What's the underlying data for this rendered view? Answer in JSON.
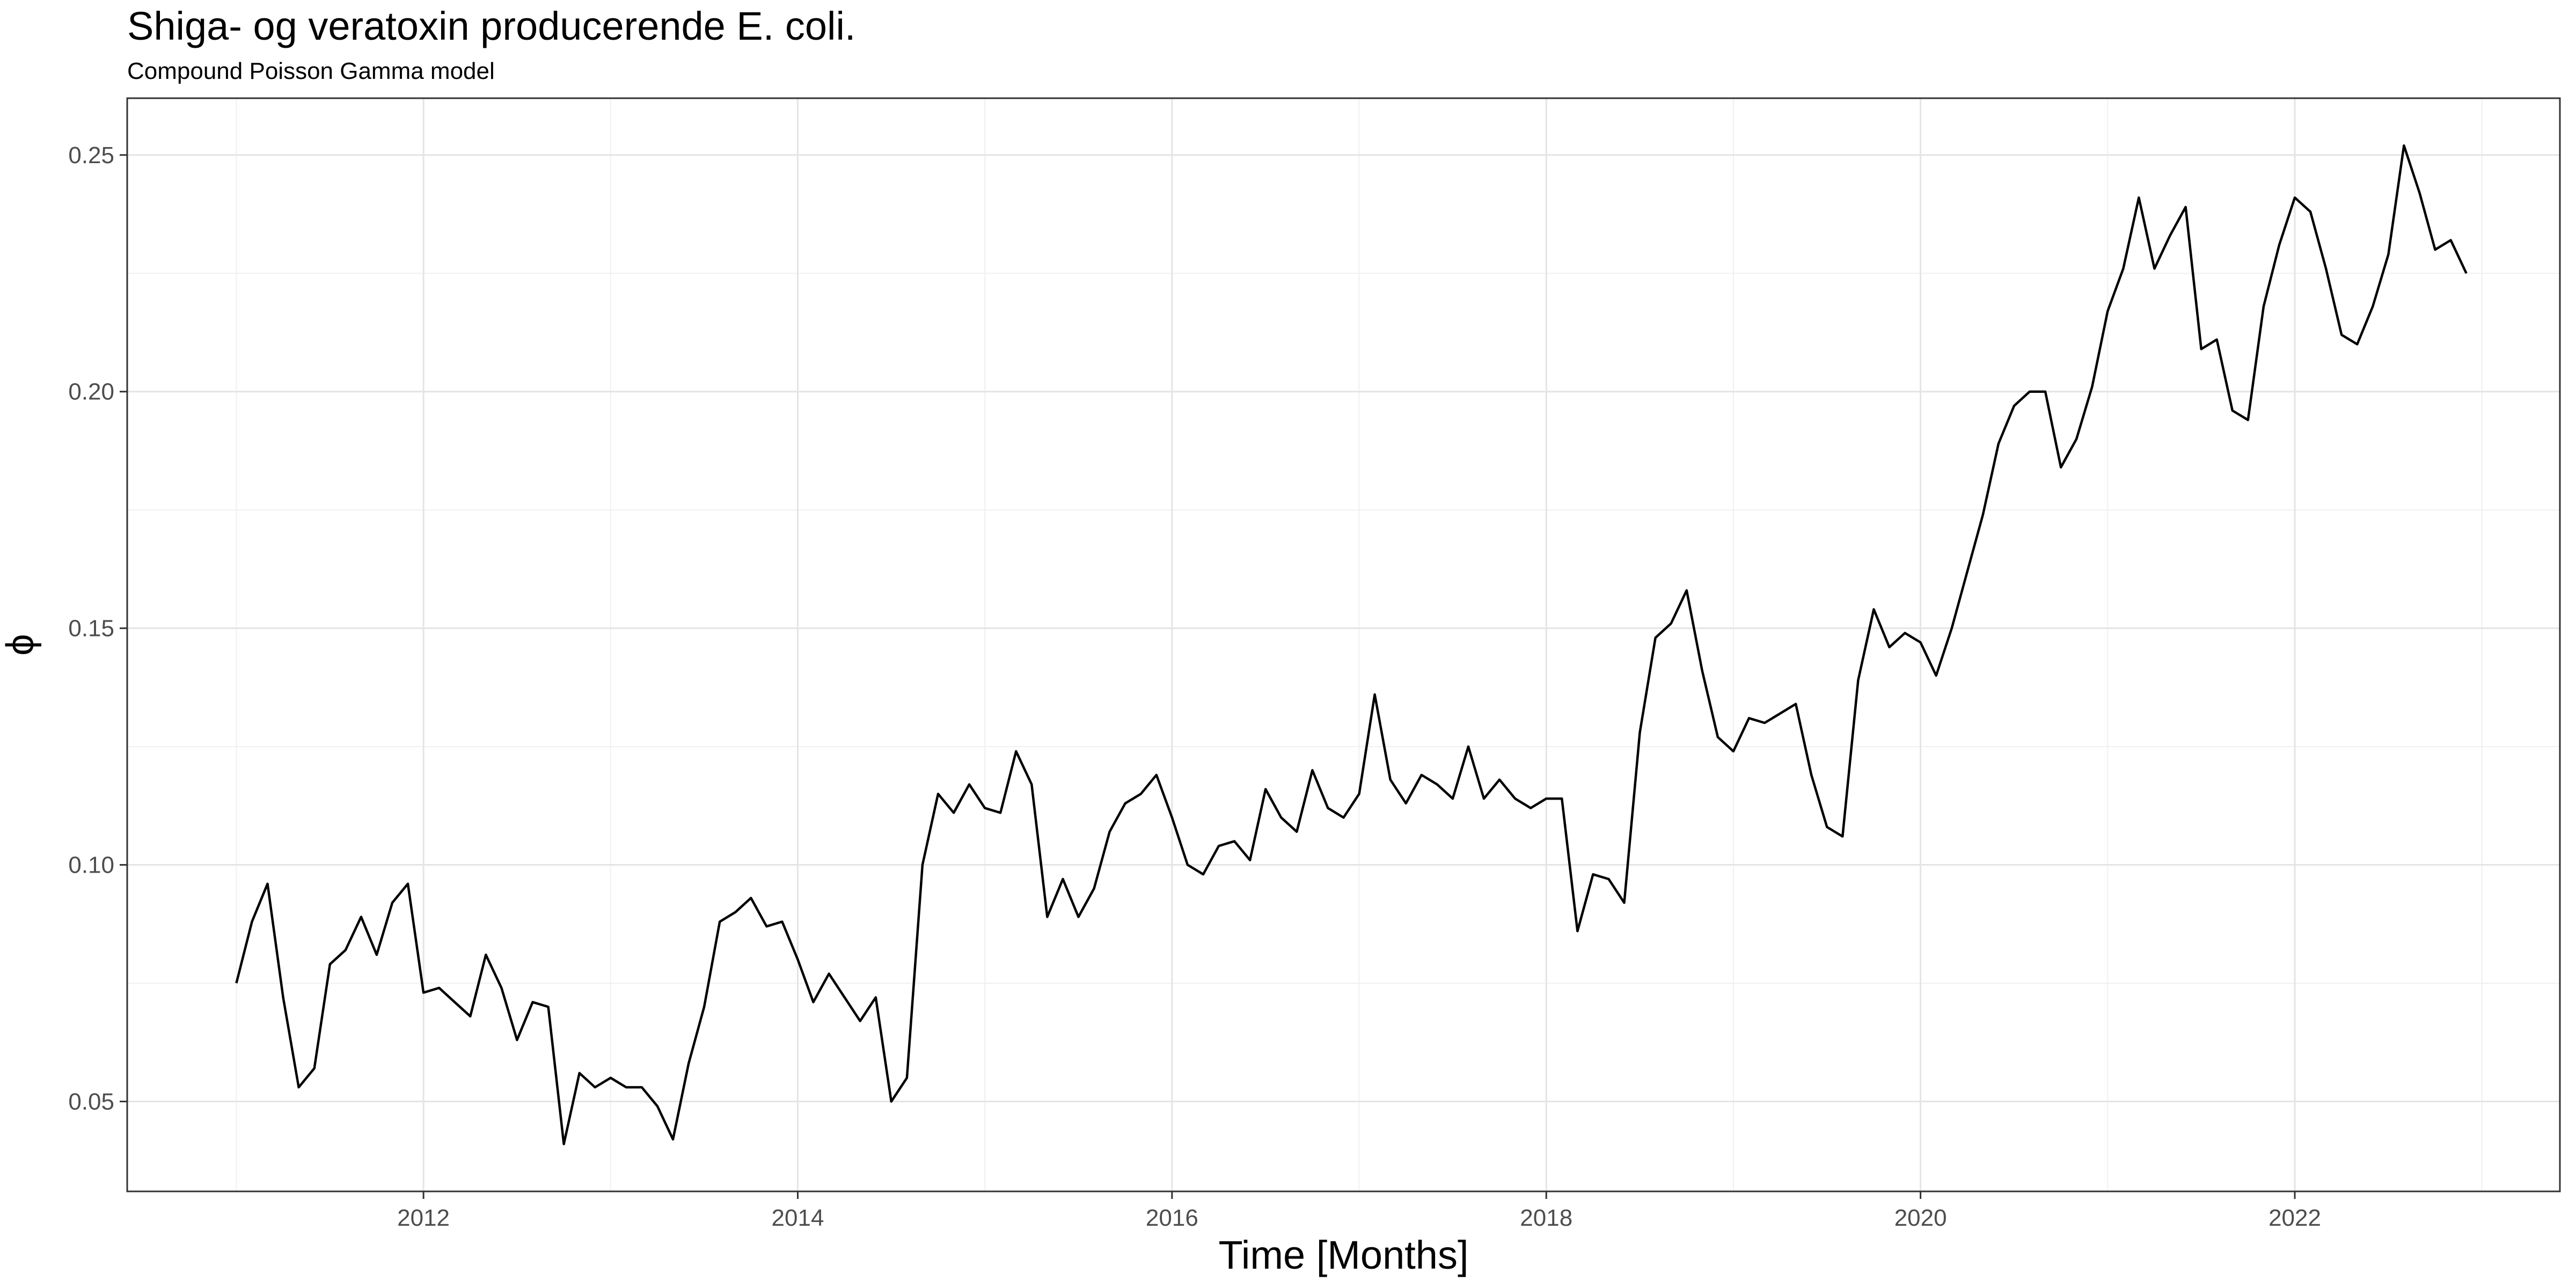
{
  "chart_data": {
    "type": "line",
    "title": "Shiga- og veratoxin producerende E. coli.",
    "subtitle": "Compound Poisson Gamma model",
    "xlabel": "Time [Months]",
    "ylabel": "ϕ",
    "x_axis": {
      "type": "date",
      "ticks": [
        "2012",
        "2014",
        "2016",
        "2018",
        "2020",
        "2022"
      ]
    },
    "y_axis": {
      "ticks": [
        "0.05",
        "0.10",
        "0.15",
        "0.20",
        "0.25"
      ]
    },
    "ylim": [
      0.031,
      0.262
    ],
    "xlim": [
      "2010-06",
      "2023-06"
    ],
    "grid": true,
    "legend": "none",
    "series": [
      {
        "color": "#000000",
        "x": [
          "2011-01",
          "2011-02",
          "2011-03",
          "2011-04",
          "2011-05",
          "2011-06",
          "2011-07",
          "2011-08",
          "2011-09",
          "2011-10",
          "2011-11",
          "2011-12",
          "2012-01",
          "2012-02",
          "2012-03",
          "2012-04",
          "2012-05",
          "2012-06",
          "2012-07",
          "2012-08",
          "2012-09",
          "2012-10",
          "2012-11",
          "2012-12",
          "2013-01",
          "2013-02",
          "2013-03",
          "2013-04",
          "2013-05",
          "2013-06",
          "2013-07",
          "2013-08",
          "2013-09",
          "2013-10",
          "2013-11",
          "2013-12",
          "2014-01",
          "2014-02",
          "2014-03",
          "2014-04",
          "2014-05",
          "2014-06",
          "2014-07",
          "2014-08",
          "2014-09",
          "2014-10",
          "2014-11",
          "2014-12",
          "2015-01",
          "2015-02",
          "2015-03",
          "2015-04",
          "2015-05",
          "2015-06",
          "2015-07",
          "2015-08",
          "2015-09",
          "2015-10",
          "2015-11",
          "2015-12",
          "2016-01",
          "2016-02",
          "2016-03",
          "2016-04",
          "2016-05",
          "2016-06",
          "2016-07",
          "2016-08",
          "2016-09",
          "2016-10",
          "2016-11",
          "2016-12",
          "2017-01",
          "2017-02",
          "2017-03",
          "2017-04",
          "2017-05",
          "2017-06",
          "2017-07",
          "2017-08",
          "2017-09",
          "2017-10",
          "2017-11",
          "2017-12",
          "2018-01",
          "2018-02",
          "2018-03",
          "2018-04",
          "2018-05",
          "2018-06",
          "2018-07",
          "2018-08",
          "2018-09",
          "2018-10",
          "2018-11",
          "2018-12",
          "2019-01",
          "2019-02",
          "2019-03",
          "2019-04",
          "2019-05",
          "2019-06",
          "2019-07",
          "2019-08",
          "2019-09",
          "2019-10",
          "2019-11",
          "2019-12",
          "2020-01",
          "2020-02",
          "2020-03",
          "2020-04",
          "2020-05",
          "2020-06",
          "2020-07",
          "2020-08",
          "2020-09",
          "2020-10",
          "2020-11",
          "2020-12",
          "2021-01",
          "2021-02",
          "2021-03",
          "2021-04",
          "2021-05",
          "2021-06",
          "2021-07",
          "2021-08",
          "2021-09",
          "2021-10",
          "2021-11",
          "2021-12",
          "2022-01",
          "2022-02",
          "2022-03",
          "2022-04",
          "2022-05",
          "2022-06",
          "2022-07",
          "2022-08",
          "2022-09",
          "2022-10",
          "2022-11",
          "2022-12"
        ],
        "values": [
          0.075,
          0.088,
          0.096,
          0.072,
          0.053,
          0.057,
          0.079,
          0.082,
          0.089,
          0.081,
          0.092,
          0.096,
          0.073,
          0.074,
          0.071,
          0.068,
          0.081,
          0.074,
          0.063,
          0.071,
          0.07,
          0.041,
          0.056,
          0.053,
          0.055,
          0.053,
          0.053,
          0.049,
          0.042,
          0.058,
          0.07,
          0.088,
          0.09,
          0.093,
          0.087,
          0.088,
          0.08,
          0.071,
          0.077,
          0.072,
          0.067,
          0.072,
          0.05,
          0.055,
          0.1,
          0.115,
          0.111,
          0.117,
          0.112,
          0.111,
          0.124,
          0.117,
          0.089,
          0.097,
          0.089,
          0.095,
          0.107,
          0.113,
          0.115,
          0.119,
          0.11,
          0.1,
          0.098,
          0.104,
          0.105,
          0.101,
          0.116,
          0.11,
          0.107,
          0.12,
          0.112,
          0.11,
          0.115,
          0.136,
          0.118,
          0.113,
          0.119,
          0.117,
          0.114,
          0.125,
          0.114,
          0.118,
          0.114,
          0.112,
          0.114,
          0.114,
          0.086,
          0.098,
          0.097,
          0.092,
          0.128,
          0.148,
          0.151,
          0.158,
          0.141,
          0.127,
          0.124,
          0.131,
          0.13,
          0.132,
          0.134,
          0.119,
          0.108,
          0.106,
          0.139,
          0.154,
          0.146,
          0.149,
          0.147,
          0.14,
          0.15,
          0.162,
          0.174,
          0.189,
          0.197,
          0.2,
          0.2,
          0.184,
          0.19,
          0.201,
          0.217,
          0.226,
          0.241,
          0.226,
          0.233,
          0.239,
          0.209,
          0.211,
          0.196,
          0.194,
          0.218,
          0.231,
          0.241,
          0.238,
          0.226,
          0.212,
          0.21,
          0.218,
          0.229,
          0.252,
          0.242,
          0.23,
          0.232,
          0.225
        ]
      }
    ]
  }
}
